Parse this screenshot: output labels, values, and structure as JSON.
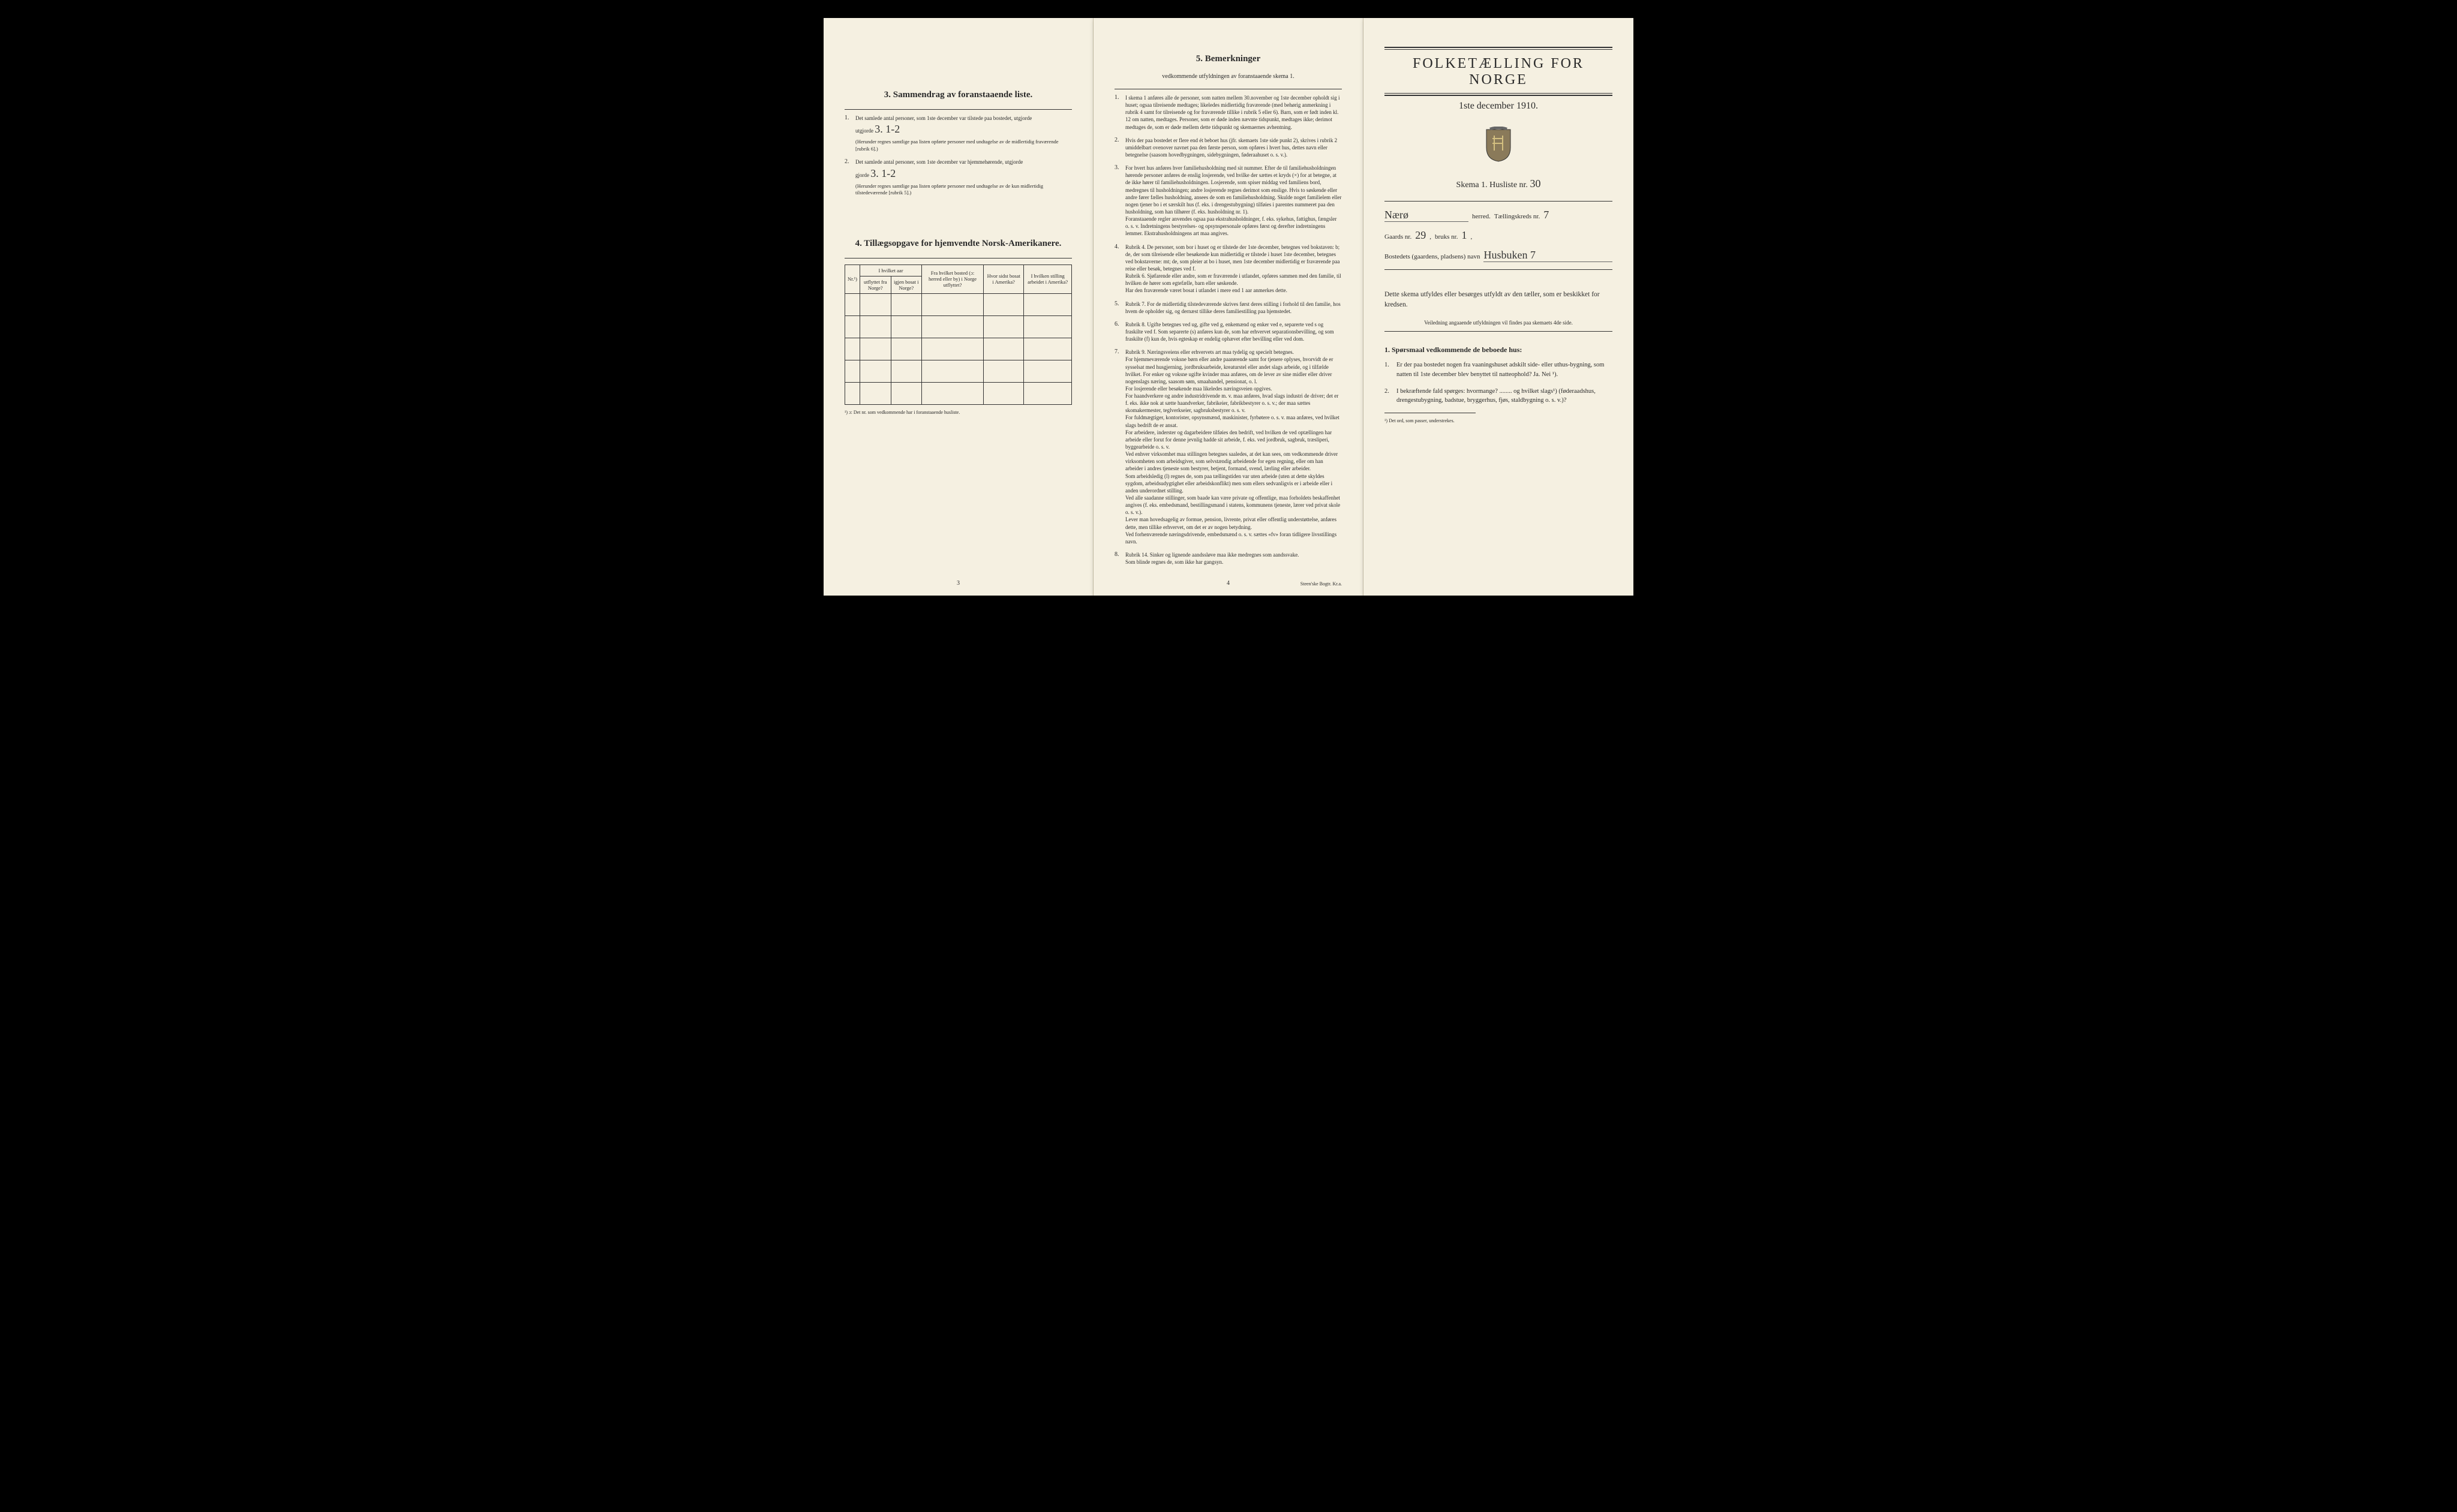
{
  "page1": {
    "section3_title": "3.   Sammendrag av foranstaaende liste.",
    "item1_text": "Det samlede antal personer, som 1ste december var tilstede paa bostedet, utgjorde",
    "item1_value": "3.    1-2",
    "item1_note": "(Herunder regnes samtlige paa listen opførte personer med undtagelse av de midlertidig fraværende [rubrik 6].)",
    "item2_text": "Det samlede antal personer, som 1ste december var hjemmehørende, utgjorde",
    "item2_value": "3.    1-2",
    "item2_note": "(Herunder regnes samtlige paa listen opførte personer med undtagelse av de kun midlertidig tilstedeværende [rubrik 5].)",
    "section4_title": "4.   Tillægsopgave for hjemvendte Norsk-Amerikanere.",
    "table_headers": {
      "col1": "Nr.¹)",
      "col2a": "I hvilket aar",
      "col2b_fra": "utflyttet fra Norge?",
      "col2b_igjen": "igjen bosat i Norge?",
      "col3": "Fra hvilket bosted (ɔ: herred eller by) i Norge utflyttet?",
      "col4": "Hvor sidst bosat i Amerika?",
      "col5": "I hvilken stilling arbeidet i Amerika?"
    },
    "table_footnote": "¹) ɔ: Det nr. som vedkommende har i foranstaaende husliste.",
    "page_num": "3"
  },
  "page2": {
    "title": "5.   Bemerkninger",
    "subtitle": "vedkommende utfyldningen av foranstaaende skema 1.",
    "items": [
      "I skema 1 anføres alle de personer, som natten mellem 30.november og 1ste december opholdt sig i huset; ogsaa tilreisende medtages; likeledes midlertidig fraværende (med behørig anmerkning i rubrik 4 samt for tilreisende og for fraværende tillike i rubrik 5 eller 6). Barn, som er født inden kl. 12 om natten, medtages. Personer, som er døde inden nævnte tidspunkt, medtages ikke; derimot medtages de, som er døde mellem dette tidspunkt og skemaernes avhentning.",
      "Hvis der paa bostedet er flere end ét beboet hus (jfr. skemaets 1ste side punkt 2), skrives i rubrik 2 umiddelbart ovenover navnet paa den første person, som opføres i hvert hus, dettes navn eller betegnelse (saasom hovedbygningen, sidebygningen, føderaahuset o. s. v.).",
      "For hvert hus anføres hver familiehusholdning med sit nummer. Efter de til familiehusholdningen hørende personer anføres de enslig losjerende, ved hvilke der sættes et kryds (×) for at betegne, at de ikke hører til familiehusholdningen. Losjerende, som spiser middag ved familiens bord, medregnes til husholdningen; andre losjerende regnes derimot som enslige. Hvis to søskende eller andre fører fælles husholdning, ansees de som en familiehusholdning. Skulde noget familielem eller nogen tjener bo i et særskilt hus (f. eks. i drengestubygning) tilføies i parentes nummeret paa den husholdning, som han tilhører (f. eks. husholdning nr. 1).\n   Foranstaaende regler anvendes ogsaa paa ekstrahusholdninger, f. eks. sykehus, fattighus, fængsler o. s. v. Indretningens bestyrelses- og opsynspersonale opføres først og derefter indretningens lemmer. Ekstrahusholdningens art maa angives.",
      "Rubrik 4. De personer, som bor i huset og er tilstede der 1ste december, betegnes ved bokstaven: b; de, der som tilreisende eller besøkende kun midlertidig er tilstede i huset 1ste december, betegnes ved bokstaverne: mt; de, som pleier at bo i huset, men 1ste december midlertidig er fraværende paa reise eller besøk, betegnes ved f.\n   Rubrik 6. Sjøfarende eller andre, som er fraværende i utlandet, opføres sammen med den familie, til hvilken de hører som egtefælle, barn eller søskende.\n   Har den fraværende været bosat i utlandet i mere end 1 aar anmerkes dette.",
      "Rubrik 7. For de midlertidig tilstedeværende skrives først deres stilling i forhold til den familie, hos hvem de opholder sig, og dernæst tillike deres familiestilling paa hjemstedet.",
      "Rubrik 8. Ugifte betegnes ved ug, gifte ved g, enkemænd og enker ved e, separerte ved s og fraskilte ved f. Som separerte (s) anføres kun de, som har erhvervet separationsbevilling, og som fraskilte (f) kun de, hvis egteskap er endelig ophævet efter bevilling eller ved dom.",
      "Rubrik 9. Næringsveiens eller erhvervets art maa tydelig og specielt betegnes.\n   For hjemmeværende voksne børn eller andre paarørende samt for tjenere oplyses, hvorvidt de er sysselsat med husgjerning, jordbruksarbeide, kreaturstel eller andet slags arbeide, og i tilfælde hvilket. For enker og voksne ugifte kvinder maa anføres, om de lever av sine midler eller driver nogenslags næring, saasom søm, smaahandel, pensionat, o. l.\n   For losjerende eller besøkende maa likeledes næringsveien opgives.\n   For haandverkere og andre industridrivende m. v. maa anføres, hvad slags industri de driver; det er f. eks. ikke nok at sætte haandverker, fabrikeier, fabrikbestyrer o. s. v.; der maa sættes skomakermester, teglverkseier, sagbruksbestyrer o. s. v.\n   For fuldmægtiger, kontorister, opsynsmænd, maskinister, fyrbøtere o. s. v. maa anføres, ved hvilket slags bedrift de er ansat.\n   For arbeidere, inderster og dagarbeidere tilføies den bedrift, ved hvilken de ved optællingen har arbeide eller forut for denne jevnlig hadde sit arbeide, f. eks. ved jordbruk, sagbruk, træsliperi, byggearbeide o. s. v.\n   Ved enhver virksomhet maa stillingen betegnes saaledes, at det kan sees, om vedkommende driver virksomheten som arbeidsgiver, som selvstændig arbeidende for egen regning, eller om han arbeider i andres tjeneste som bestyrer, betjent, formand, svend, lærling eller arbeider.\n   Som arbeidsledig (l) regnes de, som paa tællingstiden var uten arbeide (uten at dette skyldes sygdom, arbeidsudygtighet eller arbeidskonflikt) men som ellers sedvanligvis er i arbeide eller i anden underordnet stilling.\n   Ved alle saadanne stillinger, som baade kan være private og offentlige, maa forholdets beskaffenhet angives (f. eks. embedsmand, bestillingsmand i statens, kommunens tjeneste, lærer ved privat skole o. s. v.).\n   Lever man hovedsagelig av formue, pension, livrente, privat eller offentlig understøttelse, anføres dette, men tillike erhvervet, om det er av nogen betydning.\n   Ved forhenværende næringsdrivende, embedsmænd o. s. v. sættes «fv» foran tidligere livsstillings navn.",
      "Rubrik 14. Sinker og lignende aandssløve maa ikke medregnes som aandssvake.\n   Som blinde regnes de, som ikke har gangsyn."
    ],
    "page_num": "4",
    "printer": "Steen'ske Bogtr. Kr.a."
  },
  "page3": {
    "main_title": "FOLKETÆLLING FOR NORGE",
    "date": "1ste december 1910.",
    "skema_label": "Skema 1.   Husliste nr.",
    "skema_value": "30",
    "herred_value": "Nærø",
    "herred_label": "herred.",
    "kreds_label": "Tællingskreds nr.",
    "kreds_value": "7",
    "gaards_label": "Gaards nr.",
    "gaards_value": "29",
    "bruks_label": "bruks nr.",
    "bruks_value": "1",
    "bosted_label": "Bostedets (gaardens, pladsens) navn",
    "bosted_value": "Husbuken 7",
    "instruction": "Dette skema utfyldes eller besørges utfyldt av den tæller, som er beskikket for kredsen.",
    "instruction2": "Veiledning angaaende utfyldningen vil findes paa skemaets 4de side.",
    "section1_title": "1. Spørsmaal vedkommende de beboede hus:",
    "q1": "Er der paa bostedet nogen fra vaaningshuset adskilt side- eller uthus-bygning, som natten til 1ste december blev benyttet til natteophold?     Ja.   Nei ¹).",
    "q2": "I bekræftende fald spørges: hvormange? ........ og hvilket slags¹) (føderaadshus, drengestubygning, badstue, bryggerhus, fjøs, staldbygning o. s. v.)?",
    "footnote": "¹) Det ord, som passer, understrekes."
  }
}
